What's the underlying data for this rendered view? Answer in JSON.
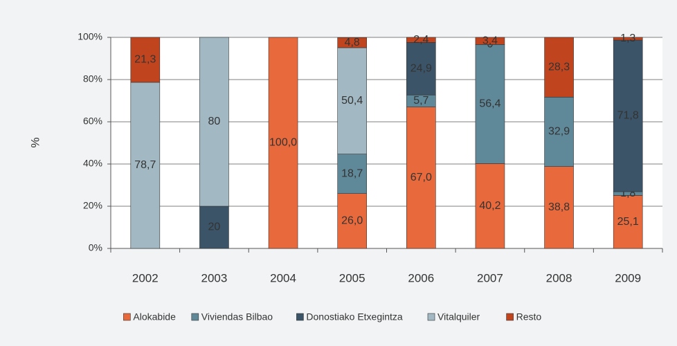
{
  "chart_data": {
    "type": "stacked_bar",
    "y_label": "%",
    "categories": [
      "2002",
      "2003",
      "2004",
      "2005",
      "2006",
      "2007",
      "2008",
      "2009"
    ],
    "series": [
      {
        "name": "Alokabide",
        "color": "#E8693C",
        "values": [
          null,
          null,
          100.0,
          26.0,
          67.0,
          40.2,
          38.8,
          25.1
        ],
        "value_labels": [
          null,
          null,
          "100,0",
          "26,0",
          "67,0",
          "40,2",
          "38,8",
          "25,1"
        ]
      },
      {
        "name": "Viviendas Bilbao",
        "color": "#5F8899",
        "values": [
          null,
          null,
          null,
          18.7,
          5.7,
          56.4,
          32.9,
          1.8
        ],
        "value_labels": [
          null,
          null,
          null,
          "18,7",
          "5,7",
          "56,4",
          "32,9",
          "1,8"
        ]
      },
      {
        "name": "Donostiako Etxegintza",
        "color": "#3B5468",
        "values": [
          null,
          20,
          null,
          null,
          24.9,
          0,
          null,
          71.8
        ],
        "value_labels": [
          null,
          "20",
          null,
          null,
          "24,9",
          "0",
          null,
          "71,8"
        ]
      },
      {
        "name": "Vitalquiler",
        "color": "#A2B8C3",
        "values": [
          78.7,
          80,
          null,
          50.4,
          null,
          null,
          null,
          null
        ],
        "value_labels": [
          "78,7",
          "80",
          null,
          "50,4",
          null,
          null,
          null,
          null
        ]
      },
      {
        "name": "Resto",
        "color": "#C0451F",
        "values": [
          21.3,
          null,
          null,
          4.8,
          2.4,
          3.4,
          28.3,
          1.3
        ],
        "value_labels": [
          "21,3",
          null,
          null,
          "4,8",
          "2,4",
          "3,4",
          "28,3",
          "1,3"
        ]
      }
    ],
    "ylim": [
      0,
      100
    ],
    "yticks": [
      {
        "value": 0,
        "label": "0%"
      },
      {
        "value": 20,
        "label": "20%"
      },
      {
        "value": 40,
        "label": "40%"
      },
      {
        "value": 60,
        "label": "60%"
      },
      {
        "value": 80,
        "label": "80%"
      },
      {
        "value": 100,
        "label": "100%"
      }
    ],
    "grid": true
  }
}
